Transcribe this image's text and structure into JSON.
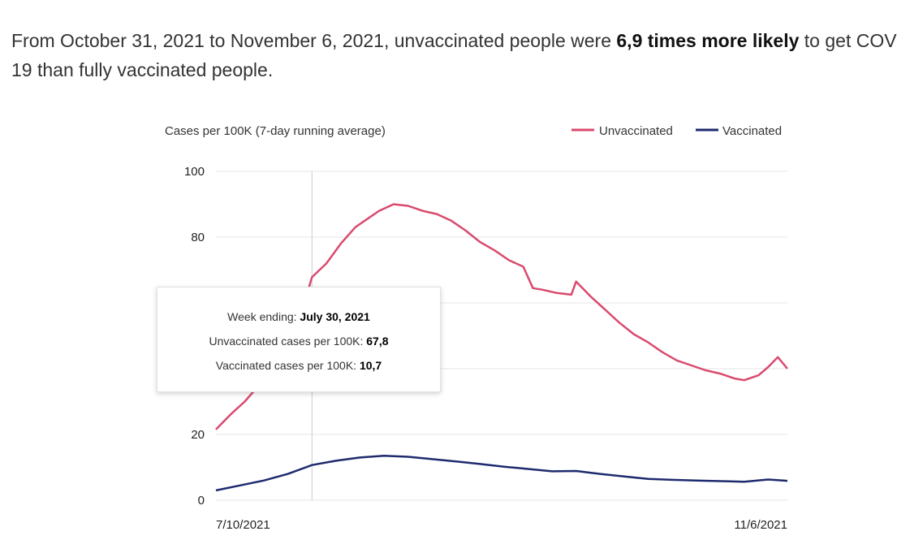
{
  "intro": {
    "pre": "From October 31, 2021 to November 6, 2021, unvaccinated people were ",
    "bold": "6,9 times more likely",
    "post_line1": " to get COV",
    "line2": "19 than fully vaccinated people."
  },
  "chart_data": {
    "type": "line",
    "ylabel": "Cases per 100K (7-day running average)",
    "ylim": [
      0,
      100
    ],
    "y_ticks": [
      {
        "value": 100,
        "label": "100"
      },
      {
        "value": 80,
        "label": "80"
      },
      {
        "value": 20,
        "label": "20"
      },
      {
        "value": 0,
        "label": "0"
      }
    ],
    "y_gridlines": [
      0,
      20,
      40,
      60,
      80,
      100
    ],
    "x_start": "2021-07-10",
    "x_end": "2021-11-06",
    "x_tick_labels": [
      "7/10/2021",
      "11/6/2021"
    ],
    "legend_position": "top-right",
    "grid": true,
    "series": [
      {
        "name": "Unvaccinated",
        "color": "#d94a6e",
        "points": [
          [
            "2021-07-10",
            21.5
          ],
          [
            "2021-07-13",
            26
          ],
          [
            "2021-07-16",
            30
          ],
          [
            "2021-07-19",
            35
          ],
          [
            "2021-07-22",
            42
          ],
          [
            "2021-07-25",
            50
          ],
          [
            "2021-07-28",
            58
          ],
          [
            "2021-07-30",
            67.8
          ],
          [
            "2021-08-02",
            72
          ],
          [
            "2021-08-05",
            78
          ],
          [
            "2021-08-08",
            83
          ],
          [
            "2021-08-11",
            86
          ],
          [
            "2021-08-13",
            88
          ],
          [
            "2021-08-16",
            90
          ],
          [
            "2021-08-19",
            89.5
          ],
          [
            "2021-08-22",
            88
          ],
          [
            "2021-08-25",
            87
          ],
          [
            "2021-08-28",
            85
          ],
          [
            "2021-08-31",
            82
          ],
          [
            "2021-09-03",
            78.5
          ],
          [
            "2021-09-06",
            76
          ],
          [
            "2021-09-09",
            73
          ],
          [
            "2021-09-12",
            71
          ],
          [
            "2021-09-14",
            64.5
          ],
          [
            "2021-09-16",
            64
          ],
          [
            "2021-09-19",
            63
          ],
          [
            "2021-09-22",
            62.5
          ],
          [
            "2021-09-23",
            66.5
          ],
          [
            "2021-09-26",
            62
          ],
          [
            "2021-09-29",
            58
          ],
          [
            "2021-10-02",
            54
          ],
          [
            "2021-10-05",
            50.5
          ],
          [
            "2021-10-08",
            48
          ],
          [
            "2021-10-11",
            45
          ],
          [
            "2021-10-14",
            42.5
          ],
          [
            "2021-10-17",
            41
          ],
          [
            "2021-10-20",
            39.5
          ],
          [
            "2021-10-23",
            38.5
          ],
          [
            "2021-10-26",
            37
          ],
          [
            "2021-10-28",
            36.5
          ],
          [
            "2021-10-31",
            38
          ],
          [
            "2021-11-02",
            40.5
          ],
          [
            "2021-11-04",
            43.5
          ],
          [
            "2021-11-06",
            40
          ]
        ]
      },
      {
        "name": "Vaccinated",
        "color": "#1e2a6e",
        "points": [
          [
            "2021-07-10",
            3
          ],
          [
            "2021-07-15",
            4.5
          ],
          [
            "2021-07-20",
            6
          ],
          [
            "2021-07-25",
            8
          ],
          [
            "2021-07-30",
            10.7
          ],
          [
            "2021-08-04",
            12
          ],
          [
            "2021-08-09",
            13
          ],
          [
            "2021-08-14",
            13.5
          ],
          [
            "2021-08-19",
            13.2
          ],
          [
            "2021-08-24",
            12.5
          ],
          [
            "2021-08-29",
            11.8
          ],
          [
            "2021-09-03",
            11
          ],
          [
            "2021-09-08",
            10.2
          ],
          [
            "2021-09-13",
            9.5
          ],
          [
            "2021-09-18",
            8.8
          ],
          [
            "2021-09-23",
            8.9
          ],
          [
            "2021-09-28",
            8
          ],
          [
            "2021-10-03",
            7.2
          ],
          [
            "2021-10-08",
            6.5
          ],
          [
            "2021-10-13",
            6.2
          ],
          [
            "2021-10-18",
            6
          ],
          [
            "2021-10-23",
            5.8
          ],
          [
            "2021-10-28",
            5.6
          ],
          [
            "2021-11-02",
            6.3
          ],
          [
            "2021-11-06",
            5.9
          ]
        ]
      }
    ],
    "tooltip": {
      "week_label": "Week ending: ",
      "week_value": "July 30, 2021",
      "unvax_label": "Unvaccinated cases per 100K: ",
      "unvax_value": "67,8",
      "vax_label": "Vaccinated cases per 100K: ",
      "vax_value": "10,7",
      "date": "2021-07-30"
    }
  }
}
